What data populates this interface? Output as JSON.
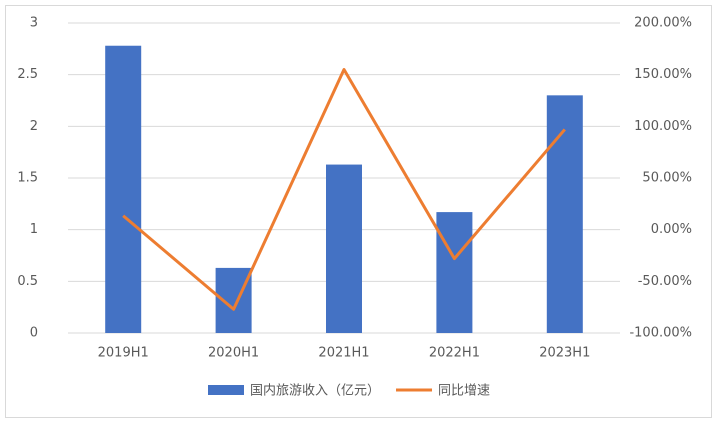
{
  "chart_data": {
    "type": "bar",
    "categories": [
      "2019H1",
      "2020H1",
      "2021H1",
      "2022H1",
      "2023H1"
    ],
    "series": [
      {
        "name": "国内旅游收入（亿元）",
        "color": "#4472c4",
        "type": "bar",
        "values": [
          2.78,
          0.63,
          1.63,
          1.17,
          2.3
        ]
      },
      {
        "name": "同比增速",
        "color": "#ed7d31",
        "type": "line",
        "axis": "y2",
        "values": [
          13.5,
          -77,
          155,
          -28,
          97
        ]
      }
    ],
    "ylim": [
      0,
      3
    ],
    "yticks": [
      0,
      0.5,
      1,
      1.5,
      2,
      2.5,
      3
    ],
    "y2lim": [
      -100,
      200
    ],
    "y2ticks": [
      {
        "value": -100,
        "label": "-100.00%"
      },
      {
        "value": -50,
        "label": "-50.00%"
      },
      {
        "value": 0,
        "label": "0.00%"
      },
      {
        "value": 50,
        "label": "50.00%"
      },
      {
        "value": 100,
        "label": "100.00%"
      },
      {
        "value": 150,
        "label": "150.00%"
      },
      {
        "value": 200,
        "label": "200.00%"
      }
    ],
    "grid": true
  }
}
